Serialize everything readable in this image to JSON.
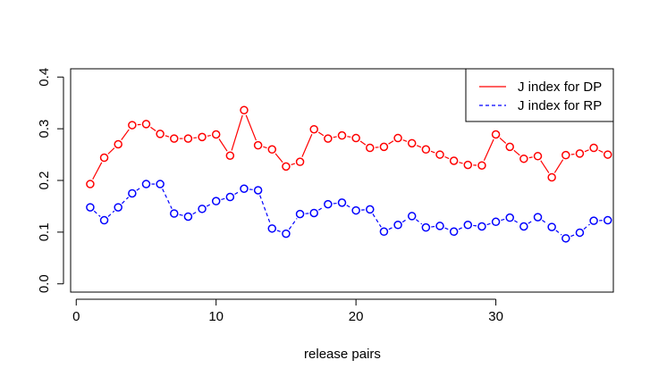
{
  "chart_data": {
    "type": "line",
    "title": "",
    "xlabel": "release pairs",
    "ylabel": "",
    "xlim": [
      -0.4,
      38.4
    ],
    "ylim": [
      -0.016,
      0.416
    ],
    "x_ticks": [
      0,
      10,
      20,
      30
    ],
    "y_ticks": [
      0.0,
      0.1,
      0.2,
      0.3,
      0.4
    ],
    "y_tick_labels": [
      "0.0",
      "0.1",
      "0.2",
      "0.3",
      "0.4"
    ],
    "grid": false,
    "legend_position": "top-right",
    "x": [
      1,
      2,
      3,
      4,
      5,
      6,
      7,
      8,
      9,
      10,
      11,
      12,
      13,
      14,
      15,
      16,
      17,
      18,
      19,
      20,
      21,
      22,
      23,
      24,
      25,
      26,
      27,
      28,
      29,
      30,
      31,
      32,
      33,
      34,
      35,
      36,
      37,
      38
    ],
    "series": [
      {
        "name": "J index for DP",
        "color": "#ff0000",
        "line_style": "solid",
        "marker": "open-circle",
        "values": [
          0.193,
          0.244,
          0.27,
          0.307,
          0.309,
          0.29,
          0.281,
          0.281,
          0.284,
          0.289,
          0.248,
          0.336,
          0.268,
          0.26,
          0.227,
          0.236,
          0.299,
          0.281,
          0.287,
          0.282,
          0.263,
          0.265,
          0.282,
          0.272,
          0.26,
          0.25,
          0.238,
          0.23,
          0.229,
          0.289,
          0.265,
          0.242,
          0.247,
          0.206,
          0.249,
          0.252,
          0.263,
          0.25
        ]
      },
      {
        "name": "J index for RP",
        "color": "#0000ff",
        "line_style": "dashed",
        "marker": "open-circle",
        "values": [
          0.148,
          0.123,
          0.148,
          0.175,
          0.193,
          0.193,
          0.136,
          0.13,
          0.145,
          0.16,
          0.168,
          0.184,
          0.181,
          0.107,
          0.097,
          0.135,
          0.137,
          0.154,
          0.157,
          0.142,
          0.144,
          0.101,
          0.114,
          0.131,
          0.109,
          0.112,
          0.101,
          0.114,
          0.111,
          0.12,
          0.128,
          0.111,
          0.129,
          0.11,
          0.088,
          0.099,
          0.122,
          0.123
        ]
      }
    ]
  }
}
